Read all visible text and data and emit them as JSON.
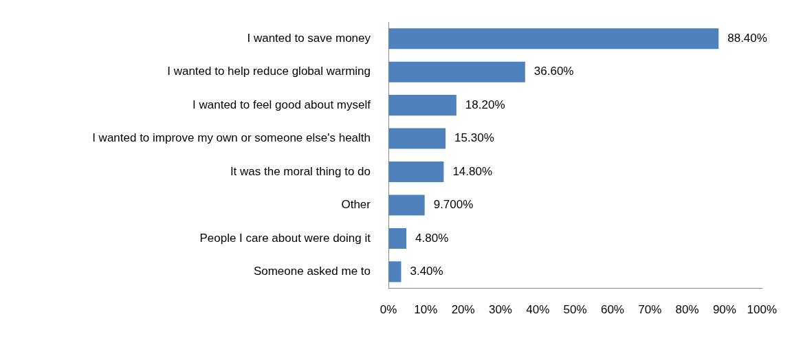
{
  "chart_data": {
    "type": "bar",
    "orientation": "horizontal",
    "categories": [
      "I wanted to save money",
      "I wanted to help reduce global warming",
      "I wanted to feel good about myself",
      "I wanted to improve my own or someone else's health",
      "It was the moral thing to do",
      "Other",
      "People I care about were doing it",
      "Someone asked me to"
    ],
    "values": [
      88.4,
      36.6,
      18.2,
      15.3,
      14.8,
      9.7,
      4.8,
      3.4
    ],
    "value_labels": [
      "88.40%",
      "36.60%",
      "18.20%",
      "15.30%",
      "14.80%",
      "9.700%",
      "4.80%",
      "3.40%"
    ],
    "color": "#4f81bd",
    "xlim": [
      0,
      100
    ],
    "xticks": [
      {
        "value": 0,
        "label": "0%"
      },
      {
        "value": 10,
        "label": "10%"
      },
      {
        "value": 20,
        "label": "20%"
      },
      {
        "value": 30,
        "label": "30%"
      },
      {
        "value": 40,
        "label": "40%"
      },
      {
        "value": 50,
        "label": "50%"
      },
      {
        "value": 60,
        "label": "60%"
      },
      {
        "value": 70,
        "label": "70%"
      },
      {
        "value": 80,
        "label": "80%"
      },
      {
        "value": 90,
        "label": "90%"
      },
      {
        "value": 100,
        "label": "100%"
      }
    ],
    "grid": false,
    "legend": false
  }
}
